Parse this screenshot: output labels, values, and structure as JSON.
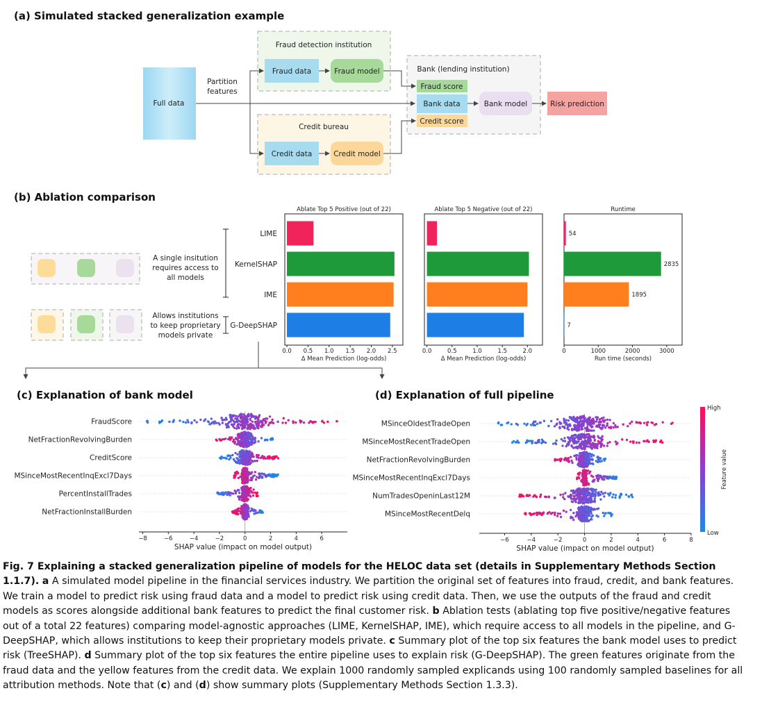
{
  "panel_a": {
    "title": "(a) Simulated stacked generalization example",
    "full_data": "Full data",
    "partition_label_1": "Partition",
    "partition_label_2": "features",
    "fraud_institution": "Fraud detection institution",
    "fraud_data": "Fraud data",
    "fraud_model": "Fraud model",
    "credit_bureau": "Credit bureau",
    "credit_data": "Credit data",
    "credit_model": "Credit model",
    "bank_institution": "Bank (lending institution)",
    "fraud_score": "Fraud score",
    "bank_data": "Bank data",
    "credit_score": "Credit score",
    "bank_model": "Bank model",
    "risk_prediction": "Risk prediction"
  },
  "panel_b": {
    "title": "(b) Ablation comparison",
    "single_inst": [
      "A single insitution",
      "requires access to",
      "all models"
    ],
    "allows_inst": [
      "Allows institutions",
      "to keep proprietary",
      "models private"
    ]
  },
  "chart_data": [
    {
      "type": "bar",
      "orientation": "horizontal",
      "title": "Ablate Top 5 Positive (out of 22)",
      "categories": [
        "LIME",
        "KernelSHAP",
        "IME",
        "G-DeepSHAP"
      ],
      "values": [
        0.63,
        2.55,
        2.53,
        2.45
      ],
      "xlabel": "Δ Mean Prediction (log-odds)",
      "xlim": [
        -0.05,
        2.75
      ],
      "xticks": [
        "0.0",
        "0.5",
        "1.0",
        "1.5",
        "2.0",
        "2.5"
      ],
      "colors": [
        "#f0245a",
        "#1f9a3a",
        "#ff7f1e",
        "#1d7fe6"
      ]
    },
    {
      "type": "bar",
      "orientation": "horizontal",
      "title": "Ablate Top 5 Negative (out of 22)",
      "categories": [
        "LIME",
        "KernelSHAP",
        "IME",
        "G-DeepSHAP"
      ],
      "values": [
        0.2,
        2.03,
        2.0,
        1.93
      ],
      "xlabel": "Δ Mean Prediction (log-odds)",
      "xlim": [
        -0.05,
        2.3
      ],
      "xticks": [
        "0.0",
        "0.5",
        "1.0",
        "1.5",
        "2.0"
      ],
      "colors": [
        "#f0245a",
        "#1f9a3a",
        "#ff7f1e",
        "#1d7fe6"
      ]
    },
    {
      "type": "bar",
      "orientation": "horizontal",
      "title": "Runtime",
      "categories": [
        "LIME",
        "KernelSHAP",
        "IME",
        "G-DeepSHAP"
      ],
      "values": [
        54,
        2835,
        1895,
        7
      ],
      "data_labels": [
        "54",
        "2835",
        "1895",
        "7"
      ],
      "xlabel": "Run time (seconds)",
      "xlim": [
        0,
        3450
      ],
      "xticks": [
        "0",
        "1000",
        "2000",
        "3000"
      ],
      "colors": [
        "#f0245a",
        "#1f9a3a",
        "#ff7f1e",
        "#1d7fe6"
      ]
    },
    {
      "type": "scatter",
      "subtype": "shap-beeswarm",
      "title": "(c) Explanation of bank model",
      "features": [
        "FraudScore",
        "NetFractionRevolvingBurden",
        "CreditScore",
        "MSinceMostRecentInqExcl7Days",
        "PercentInstallTrades",
        "NetFractionInstallBurden"
      ],
      "feature_colors": [
        "#3dae4a",
        "#222222",
        "#f2b01e",
        "#222222",
        "#222222",
        "#222222"
      ],
      "ranges": [
        [
          -7.8,
          7.2
        ],
        [
          -2.4,
          2.2
        ],
        [
          -2.0,
          2.6
        ],
        [
          -0.9,
          2.6
        ],
        [
          -2.2,
          1.0
        ],
        [
          -1.0,
          1.4
        ]
      ],
      "xlabel": "SHAP value (impact on model output)",
      "xlim": [
        -8.3,
        8.0
      ],
      "xticks": [
        "−8",
        "−6",
        "−4",
        "−2",
        "0",
        "2",
        "4",
        "6"
      ]
    },
    {
      "type": "scatter",
      "subtype": "shap-beeswarm",
      "title": "(d) Explanation of full pipeline",
      "features": [
        "MSinceOldestTradeOpen",
        "MSinceMostRecentTradeOpen",
        "NetFractionRevolvingBurden",
        "MSinceMostRecentInqExcl7Days",
        "NumTradesOpeninLast12M",
        "MSinceMostRecentDelq"
      ],
      "feature_colors": [
        "#3dae4a",
        "#3dae4a",
        "#222222",
        "#222222",
        "#3dae4a",
        "#f2b01e"
      ],
      "ranges": [
        [
          -6.6,
          7.2
        ],
        [
          -5.6,
          5.9
        ],
        [
          -2.4,
          1.7
        ],
        [
          -0.6,
          2.6
        ],
        [
          -5.0,
          3.6
        ],
        [
          -4.5,
          2.2
        ]
      ],
      "xlabel": "SHAP value (impact on model output)",
      "xlim": [
        -7.9,
        8.0
      ],
      "xticks": [
        "−6",
        "−4",
        "−2",
        "0",
        "2",
        "4",
        "6",
        "8"
      ],
      "colorbar": {
        "high": "High",
        "low": "Low",
        "label": "Feature value"
      }
    }
  ],
  "caption": {
    "fig": "Fig. 7 Explaining a stacked generalization pipeline of models for the HELOC data set (details in Supplementary Methods Section 1.1.7).",
    "a_label": "a",
    "a_text": " A simulated model pipeline in the financial services industry. We partition the original set of features into fraud, credit, and bank features. We train a model to predict risk using fraud data and a model to predict risk using credit data. Then, we use the outputs of the fraud and credit models as scores alongside additional bank features to predict the final customer risk.",
    "b_label": "b",
    "b_text": " Ablation tests (ablating top five positive/negative features out of a total 22 features) comparing model-agnostic approaches (LIME, KernelSHAP, IME), which require access to all models in the pipeline, and G-DeepSHAP, which allows institutions to keep their proprietary models private.",
    "c_label": "c",
    "c_text": " Summary plot of the top six features the bank model uses to predict risk (TreeSHAP).",
    "d_label": "d",
    "d_text": " Summary plot of the top six features the entire pipeline uses to explain risk (G-DeepSHAP). The green features originate from the fraud data and the yellow features from the credit data. We explain 1000 randomly sampled explicands using 100 randomly sampled baselines for all attribution methods. Note that (",
    "c_ref": "c",
    "mid": ") and (",
    "d_ref": "d",
    "end": ") show summary plots (Supplementary Methods Section 1.3.3)."
  }
}
